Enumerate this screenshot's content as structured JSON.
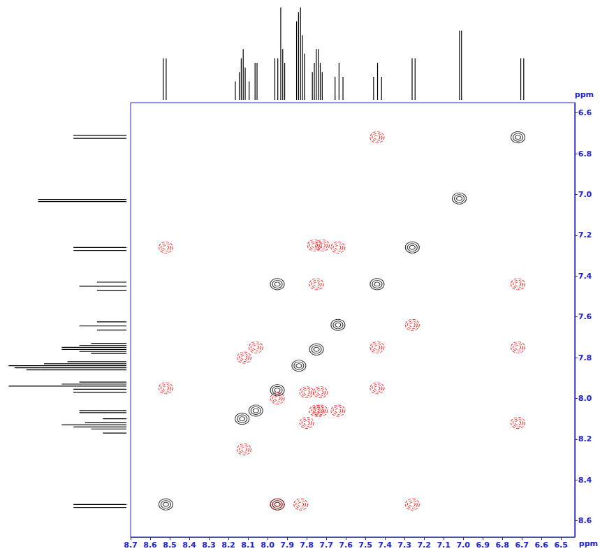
{
  "chart_data": {
    "type": "scatter",
    "x_label": "ppm",
    "y_label": "ppm",
    "xlim": [
      8.7,
      6.43
    ],
    "ylim": [
      8.68,
      6.55
    ],
    "xticks": [
      8.7,
      8.6,
      8.5,
      8.4,
      8.3,
      8.2,
      8.1,
      {
        "value": 8,
        "label": "8.0"
      },
      7.9,
      7.8,
      7.7,
      7.6,
      7.5,
      7.4,
      7.3,
      7.2,
      7.1,
      {
        "value": 7,
        "label": "7.0"
      },
      6.9,
      6.8,
      6.7,
      6.6,
      6.5
    ],
    "yticks": [
      6.6,
      6.8,
      {
        "value": 7,
        "label": "7.0"
      },
      7.2,
      7.4,
      7.6,
      7.8,
      {
        "value": 8,
        "label": "8.0"
      },
      8.2,
      8.4,
      8.6
    ],
    "series": [
      {
        "color": "#000000",
        "line_style": "solid",
        "points": [
          [
            8.52,
            8.52
          ],
          [
            8.13,
            8.1
          ],
          [
            8.06,
            8.06
          ],
          [
            7.95,
            7.96
          ],
          [
            7.84,
            7.84
          ],
          [
            7.75,
            7.76
          ],
          [
            7.64,
            7.64
          ],
          [
            7.44,
            7.44
          ],
          [
            7.26,
            7.26
          ],
          [
            7.02,
            7.02
          ],
          [
            6.72,
            6.72
          ],
          [
            7.95,
            8.52
          ],
          [
            7.95,
            7.44
          ]
        ]
      },
      {
        "color": "#ff0000",
        "line_style": "dashed",
        "points": [
          [
            8.52,
            7.26
          ],
          [
            7.26,
            8.52
          ],
          [
            8.52,
            7.95
          ],
          [
            7.95,
            8.52
          ],
          [
            7.83,
            8.52
          ],
          [
            6.72,
            7.44
          ],
          [
            7.44,
            6.72
          ],
          [
            6.72,
            7.75
          ],
          [
            7.26,
            7.64
          ],
          [
            7.64,
            7.26
          ],
          [
            7.44,
            7.75
          ],
          [
            7.75,
            7.44
          ],
          [
            7.44,
            7.95
          ],
          [
            8.12,
            7.8
          ],
          [
            7.8,
            8.12
          ],
          [
            8.06,
            7.75
          ],
          [
            7.75,
            8.06
          ],
          [
            7.73,
            8.06
          ],
          [
            7.64,
            8.06
          ],
          [
            7.76,
            7.25
          ],
          [
            7.72,
            7.25
          ],
          [
            7.73,
            7.97
          ],
          [
            7.95,
            8.0
          ],
          [
            8.12,
            8.25
          ],
          [
            6.72,
            8.12
          ],
          [
            7.8,
            7.97
          ]
        ]
      }
    ],
    "spectrum": {
      "color": "#000000",
      "x": [
        8.535,
        8.52,
        8.17,
        8.15,
        8.14,
        8.13,
        8.12,
        8.1,
        8.07,
        8.06,
        7.97,
        7.955,
        7.94,
        7.93,
        7.92,
        7.86,
        7.85,
        7.84,
        7.83,
        7.82,
        7.78,
        7.77,
        7.76,
        7.75,
        7.74,
        7.73,
        7.665,
        7.645,
        7.625,
        7.47,
        7.45,
        7.43,
        7.275,
        7.26,
        7.035,
        7.025,
        6.725,
        6.71
      ],
      "values": [
        45,
        45,
        20,
        30,
        45,
        55,
        35,
        20,
        40,
        40,
        45,
        45,
        100,
        55,
        40,
        85,
        95,
        100,
        70,
        50,
        30,
        40,
        55,
        55,
        40,
        30,
        25,
        40,
        25,
        25,
        40,
        25,
        45,
        45,
        75,
        75,
        45,
        45
      ]
    }
  }
}
